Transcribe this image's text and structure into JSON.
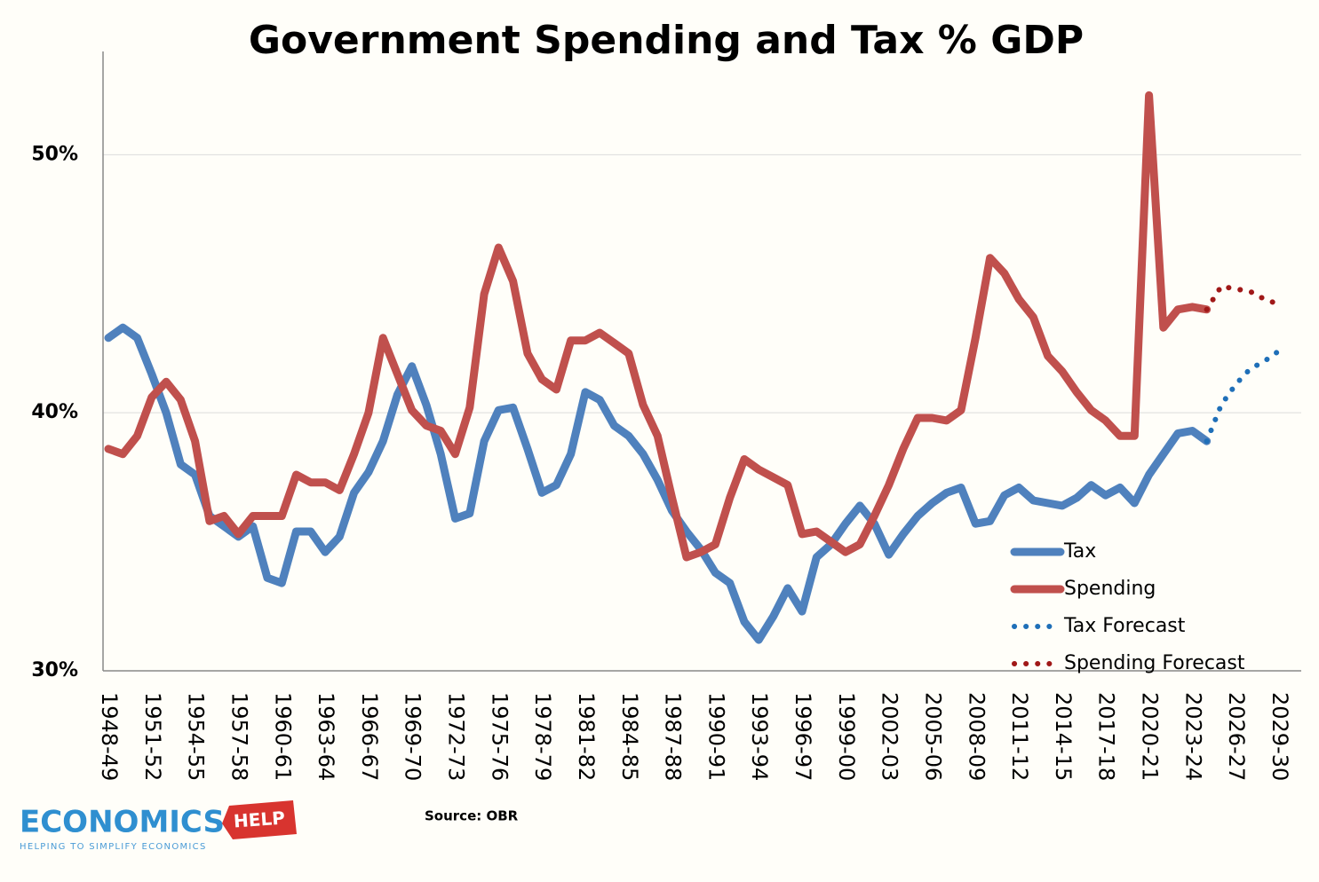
{
  "chart_data": {
    "type": "line",
    "title": "Government Spending and Tax % GDP",
    "source": "Source: OBR",
    "logo": {
      "name": "ECONOMICS",
      "tag": "HELP",
      "tagline": "HELPING TO SIMPLIFY ECONOMICS"
    },
    "categories": [
      "1948-49",
      null,
      null,
      "1951-52",
      null,
      null,
      "1954-55",
      null,
      null,
      "1957-58",
      null,
      null,
      "1960-61",
      null,
      null,
      "1963-64",
      null,
      null,
      "1966-67",
      null,
      null,
      "1969-70",
      null,
      null,
      "1972-73",
      null,
      null,
      "1975-76",
      null,
      null,
      "1978-79",
      null,
      null,
      "1981-82",
      null,
      null,
      "1984-85",
      null,
      null,
      "1987-88",
      null,
      null,
      "1990-91",
      null,
      null,
      "1993-94",
      null,
      null,
      "1996-97",
      null,
      null,
      "1999-00",
      null,
      null,
      "2002-03",
      null,
      null,
      "2005-06",
      null,
      null,
      "2008-09",
      null,
      null,
      "2011-12",
      null,
      null,
      "2014-15",
      null,
      null,
      "2017-18",
      null,
      null,
      "2020-21",
      null,
      null,
      "2023-24",
      null,
      null,
      "2026-27",
      null,
      null,
      "2029-30"
    ],
    "series": [
      {
        "name": "Tax",
        "color": "#4f81bd",
        "style": "solid",
        "values": [
          42.9,
          43.3,
          42.9,
          41.5,
          40.0,
          38.0,
          37.6,
          36.0,
          35.6,
          35.2,
          35.6,
          33.6,
          33.4,
          35.4,
          35.4,
          34.6,
          35.2,
          36.9,
          37.7,
          38.9,
          40.7,
          41.8,
          40.3,
          38.4,
          35.9,
          36.1,
          38.9,
          40.1,
          40.2,
          38.6,
          36.9,
          37.2,
          38.4,
          40.8,
          40.5,
          39.5,
          39.1,
          38.4,
          37.4,
          36.2,
          35.4,
          34.7,
          33.8,
          33.4,
          31.9,
          31.2,
          32.1,
          33.2,
          32.3,
          34.4,
          34.9,
          35.7,
          36.4,
          35.7,
          34.5,
          35.3,
          36.0,
          36.5,
          36.9,
          37.1,
          35.7,
          35.8,
          36.8,
          37.1,
          36.6,
          36.5,
          36.4,
          36.7,
          37.2,
          36.8,
          37.1,
          36.5,
          37.6,
          38.4,
          39.2,
          39.3,
          38.9,
          null,
          null,
          null,
          null,
          null
        ]
      },
      {
        "name": "Spending",
        "color": "#c0504d",
        "style": "solid",
        "values": [
          38.6,
          38.4,
          39.1,
          40.6,
          41.2,
          40.5,
          38.9,
          35.8,
          36.0,
          35.3,
          36.0,
          36.0,
          36.0,
          37.6,
          37.3,
          37.3,
          37.0,
          38.4,
          40.0,
          42.9,
          41.5,
          40.1,
          39.5,
          39.3,
          38.4,
          40.2,
          44.6,
          46.4,
          45.1,
          42.3,
          41.3,
          40.9,
          42.8,
          42.8,
          43.1,
          42.7,
          42.3,
          40.3,
          39.1,
          36.7,
          34.4,
          34.6,
          34.9,
          36.7,
          38.2,
          37.8,
          37.5,
          37.2,
          35.3,
          35.4,
          35.0,
          34.6,
          34.9,
          36.0,
          37.2,
          38.6,
          39.8,
          39.8,
          39.7,
          40.1,
          42.9,
          46.0,
          45.4,
          44.4,
          43.7,
          42.2,
          41.6,
          40.8,
          40.1,
          39.7,
          39.1,
          39.1,
          52.3,
          43.3,
          44.0,
          44.1,
          44.0,
          null,
          null,
          null,
          null,
          null
        ]
      },
      {
        "name": "Tax Forecast",
        "color": "#1f6fb8",
        "style": "dotted",
        "values": [
          null,
          null,
          null,
          null,
          null,
          null,
          null,
          null,
          null,
          null,
          null,
          null,
          null,
          null,
          null,
          null,
          null,
          null,
          null,
          null,
          null,
          null,
          null,
          null,
          null,
          null,
          null,
          null,
          null,
          null,
          null,
          null,
          null,
          null,
          null,
          null,
          null,
          null,
          null,
          null,
          null,
          null,
          null,
          null,
          null,
          null,
          null,
          null,
          null,
          null,
          null,
          null,
          null,
          null,
          null,
          null,
          null,
          null,
          null,
          null,
          null,
          null,
          null,
          null,
          null,
          null,
          null,
          null,
          null,
          null,
          null,
          null,
          null,
          null,
          null,
          null,
          38.9,
          40.3,
          41.1,
          41.7,
          42.0,
          42.4
        ]
      },
      {
        "name": "Spending Forecast",
        "color": "#a01818",
        "style": "dotted",
        "values": [
          null,
          null,
          null,
          null,
          null,
          null,
          null,
          null,
          null,
          null,
          null,
          null,
          null,
          null,
          null,
          null,
          null,
          null,
          null,
          null,
          null,
          null,
          null,
          null,
          null,
          null,
          null,
          null,
          null,
          null,
          null,
          null,
          null,
          null,
          null,
          null,
          null,
          null,
          null,
          null,
          null,
          null,
          null,
          null,
          null,
          null,
          null,
          null,
          null,
          null,
          null,
          null,
          null,
          null,
          null,
          null,
          null,
          null,
          null,
          null,
          null,
          null,
          null,
          null,
          null,
          null,
          null,
          null,
          null,
          null,
          null,
          null,
          null,
          null,
          null,
          null,
          44.0,
          44.9,
          44.8,
          44.7,
          44.4,
          44.2
        ]
      }
    ],
    "ylim": [
      30,
      54
    ],
    "yticks": [
      {
        "value": 30,
        "label": "30%"
      },
      {
        "value": 40,
        "label": "40%"
      },
      {
        "value": 50,
        "label": "50%"
      }
    ],
    "grid": true,
    "legend": "lower right"
  }
}
